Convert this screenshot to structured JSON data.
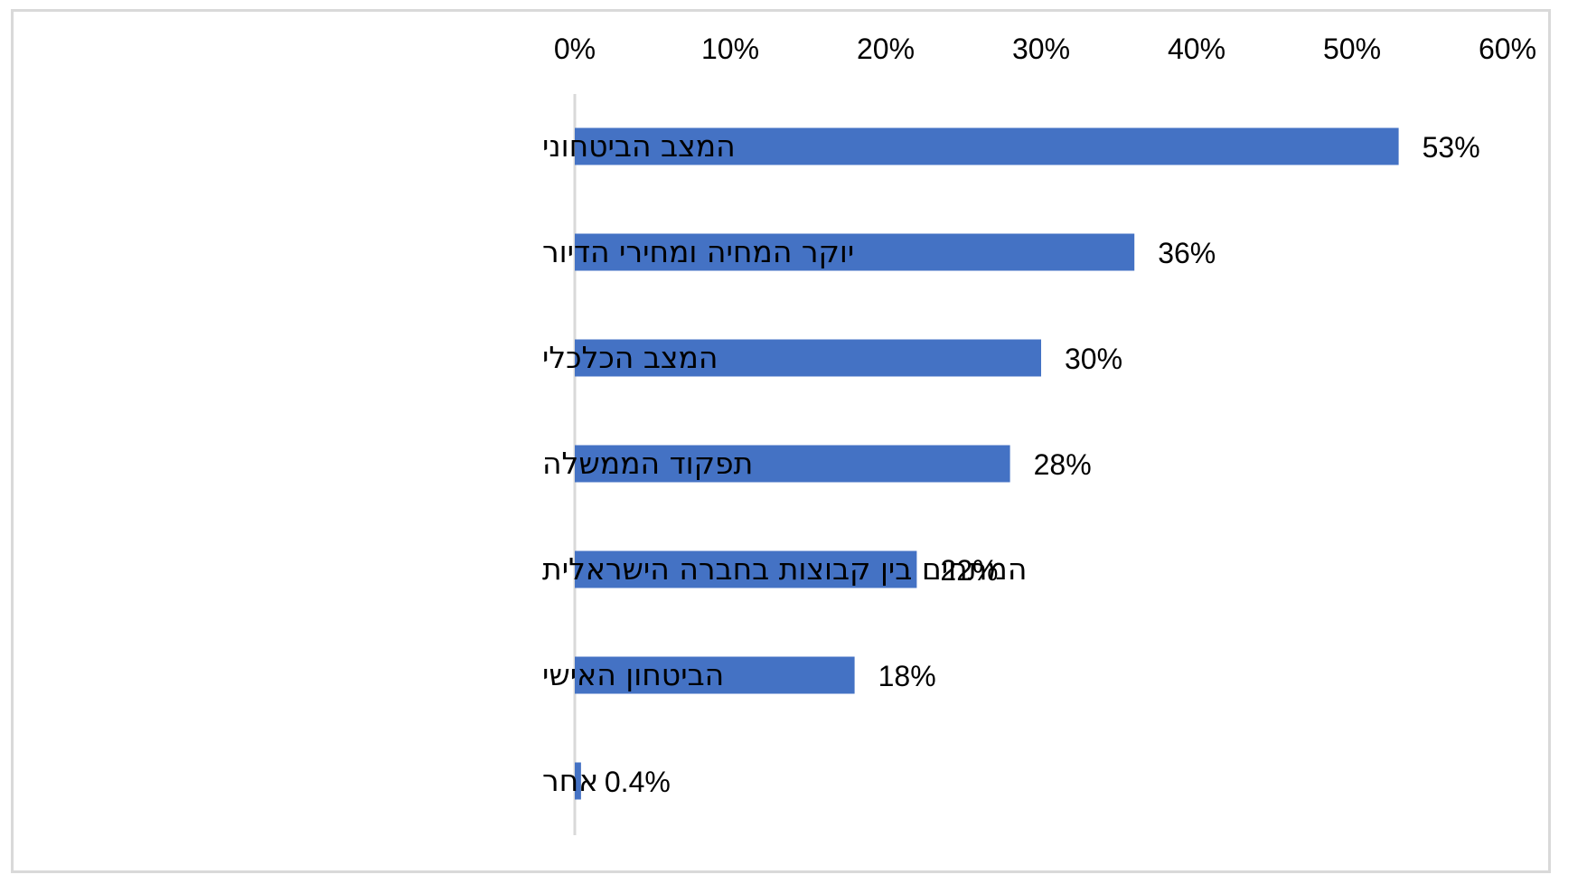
{
  "chart_data": {
    "type": "bar",
    "orientation": "horizontal",
    "categories": [
      "המצב הביטחוני",
      "יוקר המחיה ומחירי הדיור",
      "המצב הכלכלי",
      "תפקוד הממשלה",
      "המתחים בין קבוצות בחברה הישראלית",
      "הביטחון האישי",
      "אחר"
    ],
    "values": [
      53,
      36,
      30,
      28,
      22,
      18,
      0.4
    ],
    "data_labels": [
      "53%",
      "36%",
      "30%",
      "28%",
      "22%",
      "18%",
      "0.4%"
    ],
    "xticks": [
      0,
      10,
      20,
      30,
      40,
      50,
      60
    ],
    "xtick_labels": [
      "0%",
      "10%",
      "20%",
      "30%",
      "40%",
      "50%",
      "60%"
    ],
    "xlim": [
      0,
      60
    ],
    "x_axis_position": "top",
    "grid": false,
    "legend": "none",
    "title": "",
    "xlabel": "",
    "ylabel": "",
    "bar_color": "#4472C4",
    "axis_color": "#d9d9d9"
  }
}
